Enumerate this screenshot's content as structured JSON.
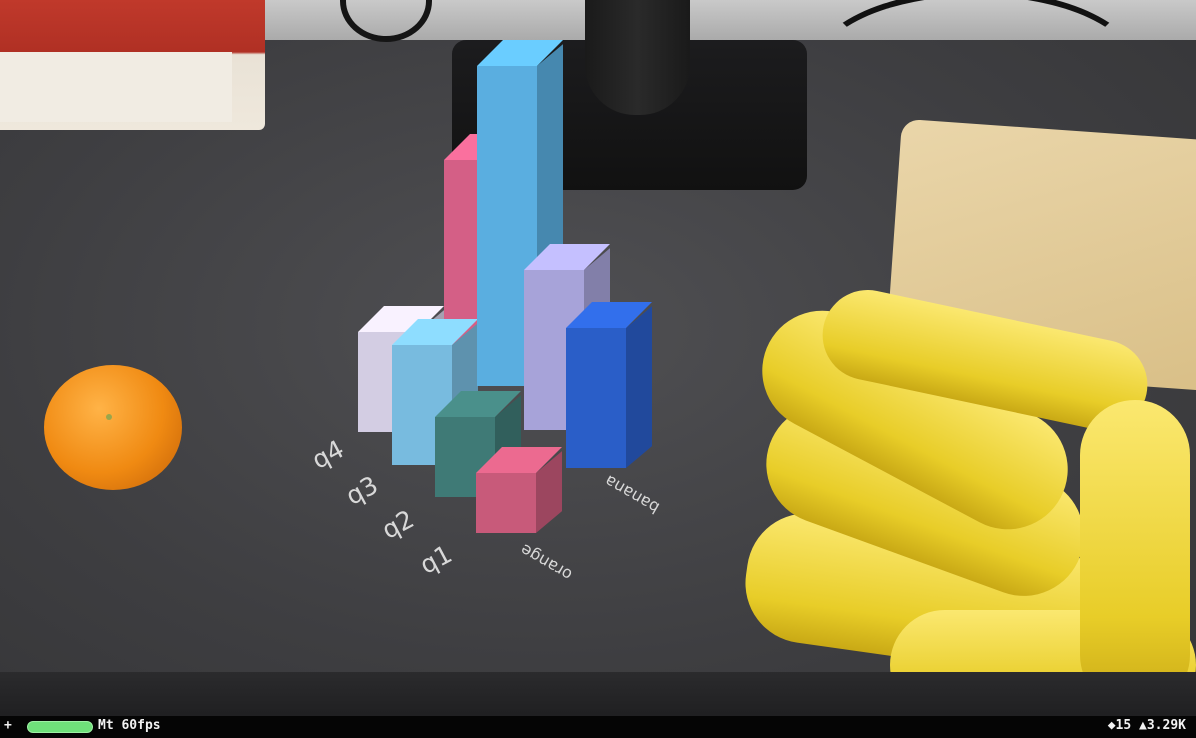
{
  "chart_data": {
    "type": "bar",
    "categories": [
      "orange",
      "banana"
    ],
    "rows": [
      "q1",
      "q2",
      "q3",
      "q4"
    ],
    "series": [
      {
        "name": "q1",
        "values": [
          3,
          7
        ]
      },
      {
        "name": "q2",
        "values": [
          4,
          8
        ]
      },
      {
        "name": "q3",
        "values": [
          6,
          16
        ]
      },
      {
        "name": "q4",
        "values": [
          5,
          10
        ]
      }
    ]
  },
  "colors": {
    "q1_orange": "#c85a7a",
    "q1_banana": "#2a5ec8",
    "q2_orange": "#3f7a76",
    "q2_banana": "#a7a3d9",
    "q3_orange": "#78bbdf",
    "q3_banana": "#5aaee0",
    "q4_orange": "#d3cde3",
    "q4_banana": "#d45f86"
  },
  "hud": {
    "plus": "+",
    "stats": "Mt 60fps",
    "right": "◆15 ▲3.29K"
  }
}
